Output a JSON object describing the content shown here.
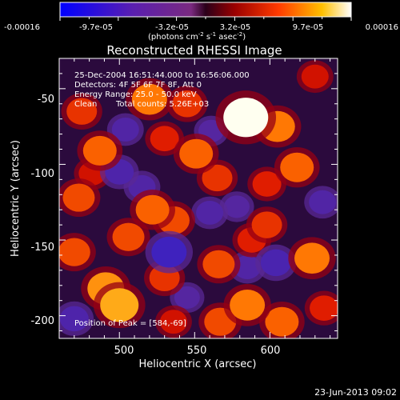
{
  "chart_data": {
    "type": "heatmap",
    "title": "Reconstructed RHESSI Image",
    "xlabel": "Heliocentric X (arcsec)",
    "ylabel": "Heliocentric Y (arcsec)",
    "xlim": [
      460,
      645
    ],
    "ylim": [
      -215,
      -30
    ],
    "x_ticks": [
      500,
      550,
      600
    ],
    "y_ticks": [
      -50,
      -100,
      -150,
      -200
    ],
    "colorbar": {
      "range": [
        -0.00016,
        0.00016
      ],
      "tick_labels": [
        "-0.00016",
        "-9.7e-05",
        "-3.2e-05",
        "3.2e-05",
        "9.7e-05",
        "0.00016"
      ],
      "label_main": "(photons cm",
      "label_sup1": "-2",
      "label_mid": " s",
      "label_sup2": "-1",
      "label_mid2": " asec",
      "label_sup3": "-2",
      "label_end": ")"
    },
    "annotations": {
      "line1": "25-Dec-2004 16:51:44.000 to 16:56:06.000",
      "line2": "Detectors: 4F 5F 6F 7F 8F, Att 0",
      "line3": "Energy Range: 25.0 - 50.0 keV",
      "line4a": "Clean",
      "line4b": "Total counts: 5.26E+03",
      "peak": "Position of Peak = [584,-69]"
    },
    "peak": [
      584,
      -69
    ],
    "sources": [
      {
        "x": 584,
        "y": -69,
        "v": 0.00016
      },
      {
        "x": 500,
        "y": -193,
        "v": 0.00012
      },
      {
        "x": 520,
        "y": -57,
        "v": 0.0001
      },
      {
        "x": 475,
        "y": -65,
        "v": 7e-05
      },
      {
        "x": 487,
        "y": -91,
        "v": 9e-05
      },
      {
        "x": 551,
        "y": -93,
        "v": 9e-05
      },
      {
        "x": 565,
        "y": -109,
        "v": 7e-05
      },
      {
        "x": 605,
        "y": -75,
        "v": 0.0001
      },
      {
        "x": 618,
        "y": -102,
        "v": 9e-05
      },
      {
        "x": 628,
        "y": -162,
        "v": 0.0001
      },
      {
        "x": 608,
        "y": -204,
        "v": 9e-05
      },
      {
        "x": 473,
        "y": -122,
        "v": 8e-05
      },
      {
        "x": 470,
        "y": -158,
        "v": 8e-05
      },
      {
        "x": 491,
        "y": -182,
        "v": 0.00011
      },
      {
        "x": 522,
        "y": -130,
        "v": 9e-05
      },
      {
        "x": 536,
        "y": -137,
        "v": 8e-05
      },
      {
        "x": 506,
        "y": -148,
        "v": 8e-05
      },
      {
        "x": 530,
        "y": -175,
        "v": 7e-05
      },
      {
        "x": 566,
        "y": -166,
        "v": 8e-05
      },
      {
        "x": 585,
        "y": -193,
        "v": 0.0001
      },
      {
        "x": 567,
        "y": -204,
        "v": 8e-05
      },
      {
        "x": 536,
        "y": -204,
        "v": 5e-05
      },
      {
        "x": 598,
        "y": -140,
        "v": 7e-05
      },
      {
        "x": 588,
        "y": -150,
        "v": 6e-05
      },
      {
        "x": 636,
        "y": -195,
        "v": 6e-05
      },
      {
        "x": 545,
        "y": -60,
        "v": 7e-05
      },
      {
        "x": 630,
        "y": -42,
        "v": 5e-05
      },
      {
        "x": 530,
        "y": -83,
        "v": 6e-05
      },
      {
        "x": 482,
        "y": -106,
        "v": 5e-05
      },
      {
        "x": 598,
        "y": -113,
        "v": 6e-05
      },
      {
        "x": 504,
        "y": -77,
        "v": -5e-05
      },
      {
        "x": 533,
        "y": -158,
        "v": -0.0001
      },
      {
        "x": 500,
        "y": -105,
        "v": -6e-05
      },
      {
        "x": 515,
        "y": -115,
        "v": -5e-05
      },
      {
        "x": 470,
        "y": -202,
        "v": -6e-05
      },
      {
        "x": 561,
        "y": -78,
        "v": -4e-05
      },
      {
        "x": 604,
        "y": -165,
        "v": -7e-05
      },
      {
        "x": 585,
        "y": -168,
        "v": -5e-05
      },
      {
        "x": 560,
        "y": -132,
        "v": -5e-05
      },
      {
        "x": 635,
        "y": -125,
        "v": -5e-05
      },
      {
        "x": 545,
        "y": -188,
        "v": -4e-05
      },
      {
        "x": 578,
        "y": -128,
        "v": -4e-05
      }
    ]
  },
  "footer": {
    "timestamp": "23-Jun-2013 09:02"
  }
}
